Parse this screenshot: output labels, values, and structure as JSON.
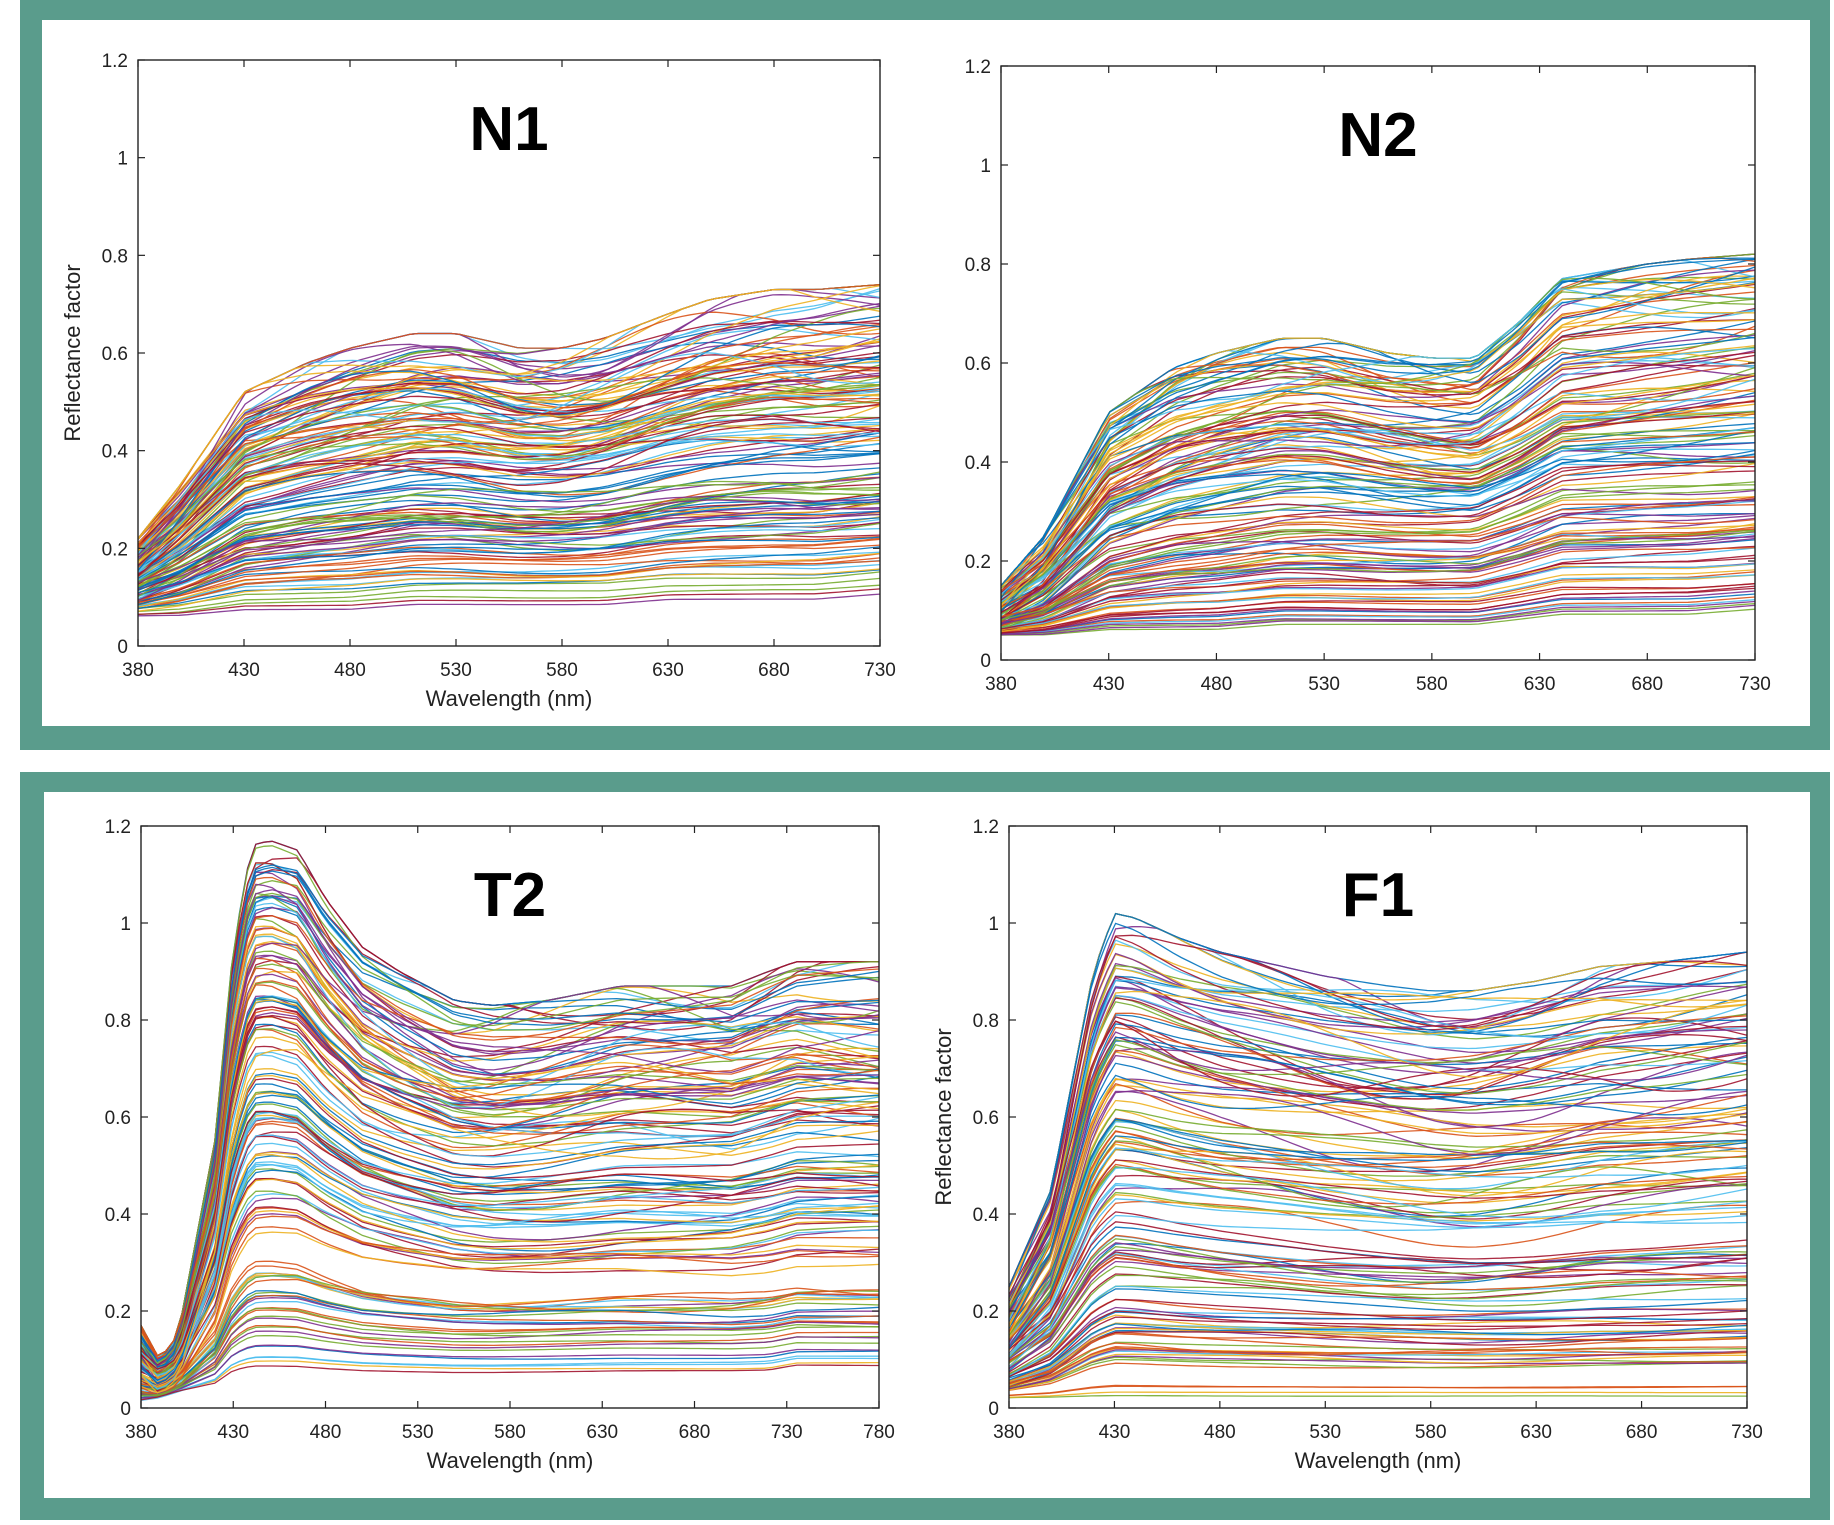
{
  "colors": {
    "frame": "#5a9c8c",
    "panel_bg": "#ffffff",
    "axis": "#222222",
    "palette": [
      "#0072BD",
      "#D95319",
      "#EDB120",
      "#7E2F8E",
      "#77AC30",
      "#4DBEEE",
      "#A2142F"
    ]
  },
  "chart_data": [
    {
      "type": "line",
      "title": "N1",
      "xlabel": "Wavelength (nm)",
      "ylabel": "Reflectance factor",
      "xlim": [
        380,
        730
      ],
      "ylim": [
        0,
        1.2
      ],
      "xticks": [
        380,
        430,
        480,
        530,
        580,
        630,
        680,
        730
      ],
      "yticks": [
        0,
        0.2,
        0.4,
        0.6,
        0.8,
        1,
        1.2
      ],
      "grid": false,
      "series_count": "hundreds",
      "envelope": {
        "x": [
          380,
          400,
          430,
          460,
          480,
          510,
          530,
          560,
          580,
          600,
          630,
          650,
          680,
          700,
          730
        ],
        "upper": [
          0.22,
          0.33,
          0.52,
          0.58,
          0.61,
          0.64,
          0.64,
          0.61,
          0.61,
          0.63,
          0.68,
          0.71,
          0.73,
          0.73,
          0.74
        ],
        "lower": [
          0.06,
          0.06,
          0.07,
          0.07,
          0.07,
          0.08,
          0.08,
          0.08,
          0.08,
          0.08,
          0.09,
          0.09,
          0.09,
          0.09,
          0.1
        ]
      }
    },
    {
      "type": "line",
      "title": "N2",
      "xlabel": "",
      "ylabel": "",
      "xlim": [
        380,
        730
      ],
      "ylim": [
        0,
        1.2
      ],
      "xticks": [
        380,
        430,
        480,
        530,
        580,
        630,
        680,
        730
      ],
      "yticks": [
        0,
        0.2,
        0.4,
        0.6,
        0.8,
        1,
        1.2
      ],
      "grid": false,
      "series_count": "hundreds",
      "envelope": {
        "x": [
          380,
          400,
          430,
          460,
          480,
          510,
          530,
          560,
          580,
          600,
          620,
          640,
          680,
          700,
          730
        ],
        "upper": [
          0.15,
          0.25,
          0.5,
          0.59,
          0.62,
          0.65,
          0.65,
          0.62,
          0.61,
          0.61,
          0.68,
          0.77,
          0.8,
          0.81,
          0.82
        ],
        "lower": [
          0.05,
          0.05,
          0.06,
          0.06,
          0.06,
          0.07,
          0.07,
          0.07,
          0.07,
          0.07,
          0.08,
          0.09,
          0.09,
          0.09,
          0.1
        ]
      }
    },
    {
      "type": "line",
      "title": "T2",
      "xlabel": "Wavelength (nm)",
      "ylabel": "",
      "xlim": [
        380,
        780
      ],
      "ylim": [
        0,
        1.2
      ],
      "xticks": [
        380,
        430,
        480,
        530,
        580,
        630,
        680,
        730,
        780
      ],
      "yticks": [
        0,
        0.2,
        0.4,
        0.6,
        0.8,
        1,
        1.2
      ],
      "grid": false,
      "series_count": "hundreds",
      "envelope": {
        "x": [
          380,
          390,
          400,
          420,
          430,
          440,
          450,
          465,
          480,
          500,
          520,
          550,
          570,
          600,
          640,
          670,
          700,
          720,
          735,
          780
        ],
        "upper": [
          0.17,
          0.1,
          0.15,
          0.55,
          0.95,
          1.16,
          1.17,
          1.15,
          1.05,
          0.95,
          0.9,
          0.84,
          0.83,
          0.84,
          0.87,
          0.87,
          0.87,
          0.9,
          0.92,
          0.92
        ],
        "lower": [
          0.01,
          0.02,
          0.03,
          0.03,
          0.04,
          0.04,
          0.04,
          0.04,
          0.04,
          0.04,
          0.04,
          0.04,
          0.04,
          0.04,
          0.04,
          0.04,
          0.04,
          0.04,
          0.05,
          0.05
        ]
      }
    },
    {
      "type": "line",
      "title": "F1",
      "xlabel": "Wavelength (nm)",
      "ylabel": "Reflectance factor",
      "xlim": [
        380,
        730
      ],
      "ylim": [
        0,
        1.2
      ],
      "xticks": [
        380,
        430,
        480,
        530,
        580,
        630,
        680,
        730
      ],
      "yticks": [
        0,
        0.2,
        0.4,
        0.6,
        0.8,
        1,
        1.2
      ],
      "grid": false,
      "series_count": "hundreds",
      "envelope": {
        "x": [
          380,
          400,
          420,
          430,
          440,
          460,
          480,
          510,
          530,
          560,
          580,
          600,
          630,
          660,
          690,
          730
        ],
        "upper": [
          0.25,
          0.45,
          0.9,
          1.02,
          1.01,
          0.97,
          0.94,
          0.91,
          0.89,
          0.87,
          0.86,
          0.86,
          0.88,
          0.91,
          0.92,
          0.94
        ],
        "lower": [
          0.02,
          0.02,
          0.02,
          0.02,
          0.02,
          0.02,
          0.02,
          0.02,
          0.02,
          0.02,
          0.02,
          0.02,
          0.02,
          0.02,
          0.02,
          0.02
        ]
      }
    }
  ]
}
